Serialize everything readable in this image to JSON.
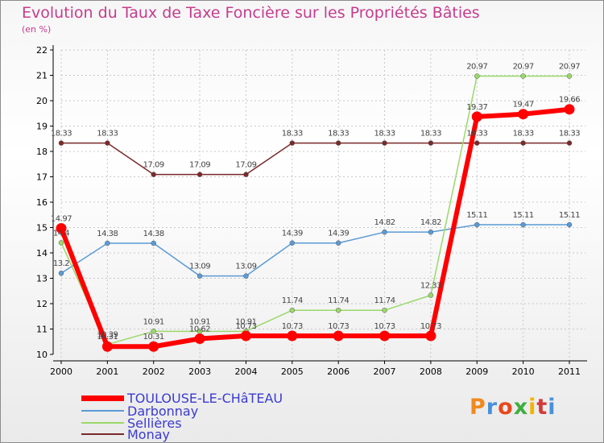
{
  "title": "Evolution du Taux de Taxe Foncière sur les Propriétés Bâties",
  "unit": "(en %)",
  "brand": "Proxiti",
  "colors": {
    "title": "#c63c8c",
    "legend_text": "#3b3bd0",
    "grid": "#c8c8c8",
    "axis": "#000000",
    "logo_letters": [
      "#f08a1f",
      "#4a90d9",
      "#e8481c",
      "#3fae3f",
      "#f0b400",
      "#d43a3a",
      "#4a90d9"
    ]
  },
  "chart_data": {
    "type": "line",
    "title": "Evolution du Taux de Taxe Foncière sur les Propriétés Bâties",
    "ylabel": "(en %)",
    "xlabel": "",
    "x": [
      "2000",
      "2001",
      "2002",
      "2003",
      "2004",
      "2005",
      "2006",
      "2007",
      "2008",
      "2009",
      "2010",
      "2011"
    ],
    "ylim": [
      10,
      22
    ],
    "yticks": [
      "10",
      "11",
      "12",
      "13",
      "14",
      "15",
      "16",
      "17",
      "18",
      "19",
      "20",
      "21",
      "22"
    ],
    "grid": true,
    "legend_position": "bottom-left",
    "series": [
      {
        "name": "TOULOUSE-LE-CHâTEAU",
        "color": "#ff0000",
        "width": "thick",
        "values": [
          14.97,
          10.31,
          10.31,
          10.62,
          10.73,
          10.73,
          10.73,
          10.73,
          10.73,
          19.37,
          19.47,
          19.66
        ],
        "labels": [
          "14.97",
          "10.31",
          "10.31",
          "10.62",
          "10.73",
          "10.73",
          "10.73",
          "10.73",
          "10.73",
          "19.37",
          "19.47",
          "19.66"
        ]
      },
      {
        "name": "Darbonnay",
        "color": "#5b9bd5",
        "width": "thin",
        "values": [
          13.2,
          14.38,
          14.38,
          13.09,
          13.09,
          14.39,
          14.39,
          14.82,
          14.82,
          15.11,
          15.11,
          15.11
        ],
        "labels": [
          "13.2",
          "14.38",
          "14.38",
          "13.09",
          "13.09",
          "14.39",
          "14.39",
          "14.82",
          "14.82",
          "15.11",
          "15.11",
          "15.11"
        ]
      },
      {
        "name": "Sellières",
        "color": "#9bd86a",
        "width": "thin",
        "values": [
          14.4,
          10.39,
          10.91,
          10.91,
          10.91,
          11.74,
          11.74,
          11.74,
          12.33,
          20.97,
          20.97,
          20.97
        ],
        "labels": [
          "14.4",
          "10.39",
          "10.91",
          "10.91",
          "10.91",
          "11.74",
          "11.74",
          "11.74",
          "12.33",
          "20.97",
          "20.97",
          "20.97"
        ]
      },
      {
        "name": "Monay",
        "color": "#7a2a2a",
        "width": "thin",
        "values": [
          18.33,
          18.33,
          17.09,
          17.09,
          17.09,
          18.33,
          18.33,
          18.33,
          18.33,
          18.33,
          18.33,
          18.33
        ],
        "labels": [
          "18.33",
          "18.33",
          "17.09",
          "17.09",
          "17.09",
          "18.33",
          "18.33",
          "18.33",
          "18.33",
          "18.33",
          "18.33",
          "18.33"
        ]
      }
    ]
  }
}
